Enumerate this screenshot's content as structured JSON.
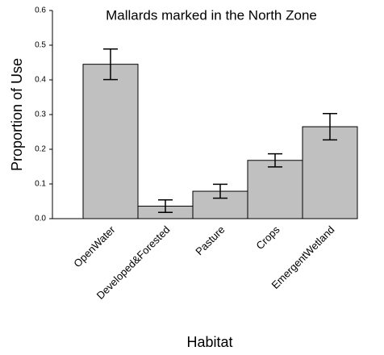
{
  "chart_data": {
    "type": "bar",
    "title": "Mallards marked in the North Zone",
    "x_label": "Habitat",
    "y_label": "Proportion of Use",
    "categories": [
      "OpenWater",
      "Developed&Forested",
      "Pasture",
      "Crops",
      "EmergentWetland"
    ],
    "values": [
      0.445,
      0.036,
      0.079,
      0.168,
      0.265
    ],
    "errors": [
      0.044,
      0.018,
      0.02,
      0.019,
      0.038
    ],
    "color": "#c0c0c0",
    "ylim": [
      0,
      0.6
    ],
    "yticks": [
      {
        "value": 0,
        "label": "0.0"
      },
      0.1,
      0.2,
      0.3,
      0.4,
      0.5,
      0.6
    ]
  }
}
